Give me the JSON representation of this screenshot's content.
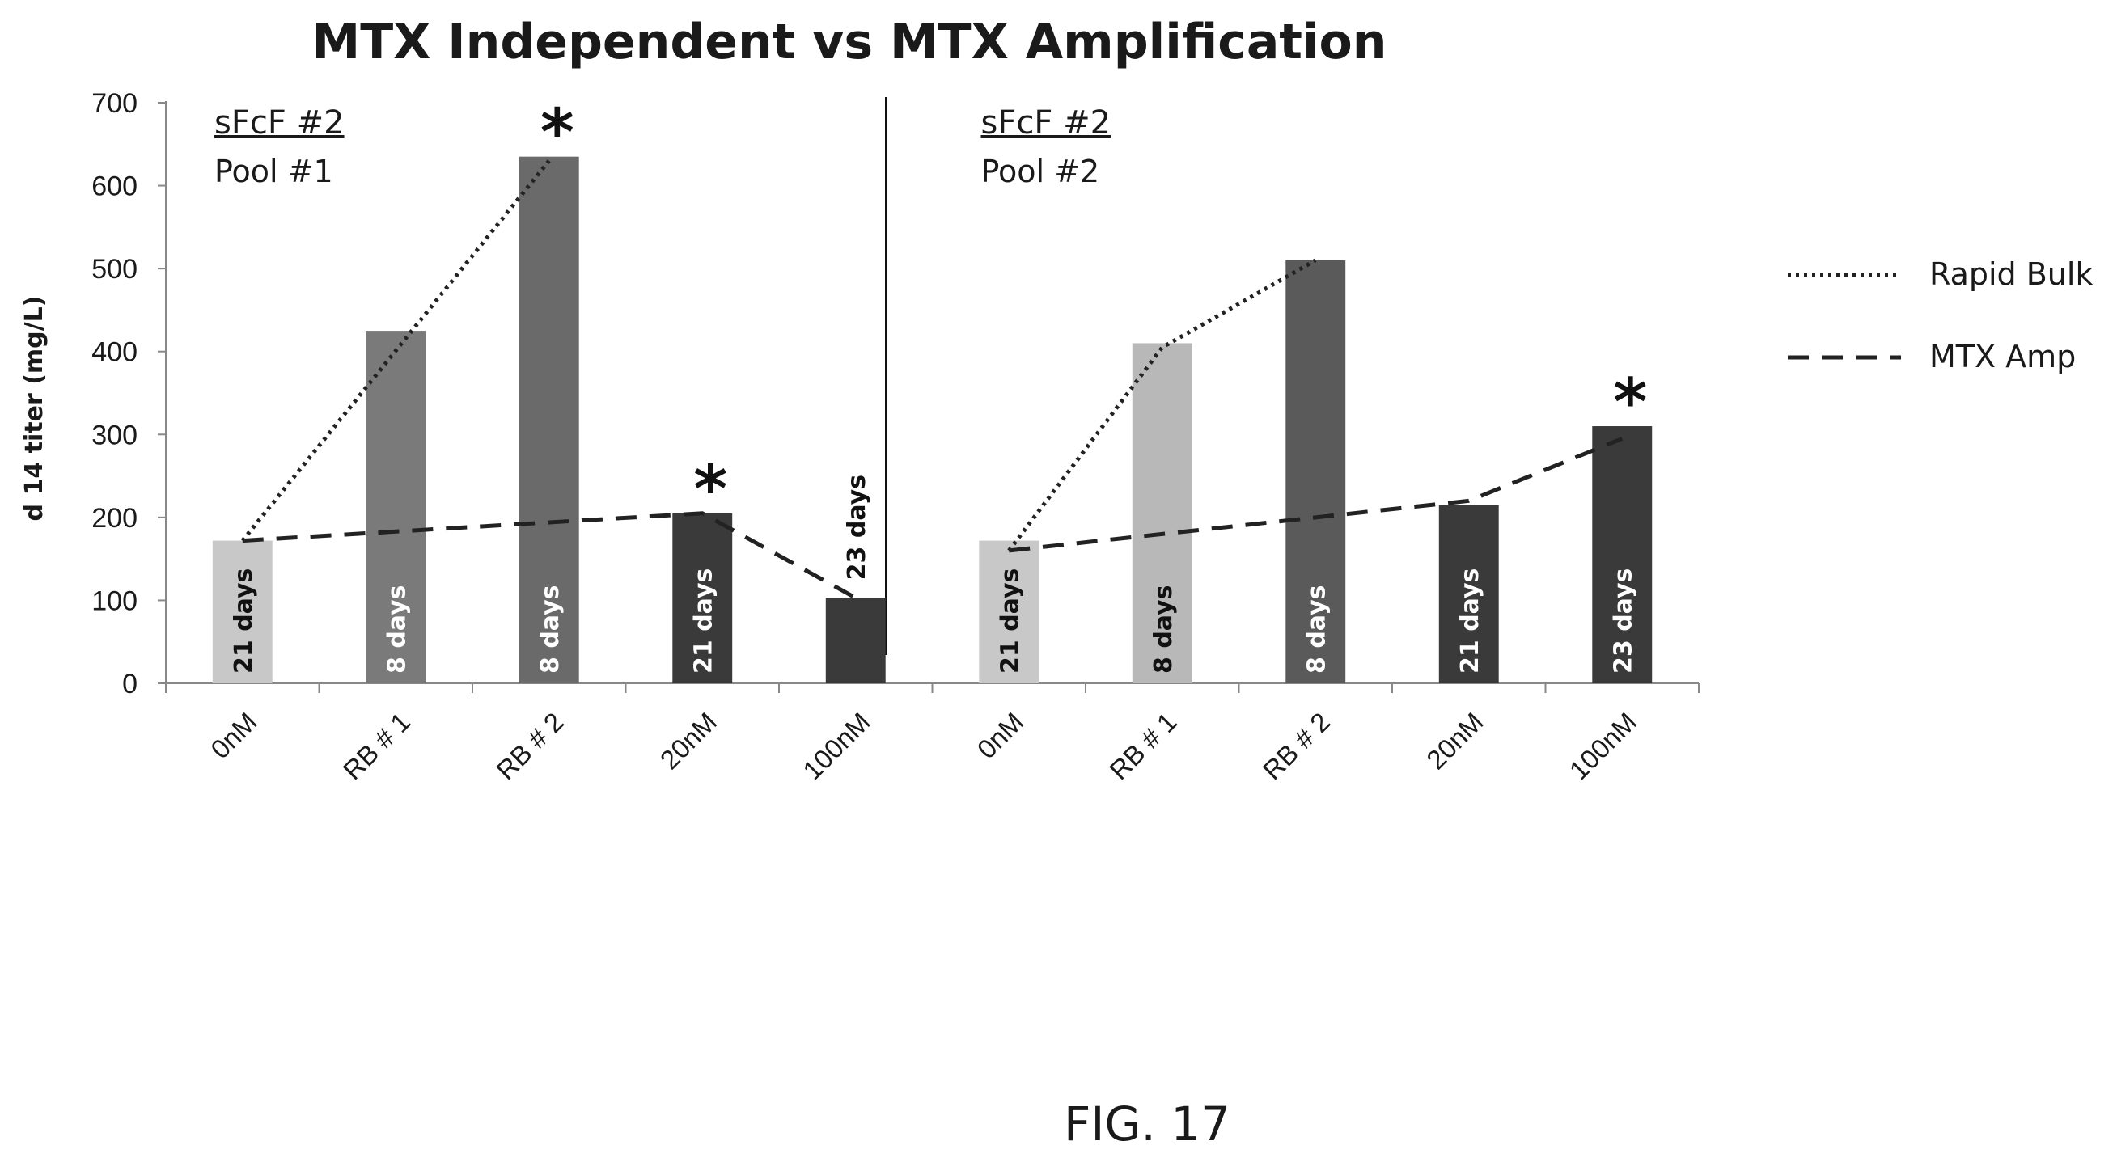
{
  "chart_data": {
    "type": "bar",
    "title": "MTX Independent vs MTX Amplification",
    "ylabel": "d 14 titer (mg/L)",
    "xlabel": "",
    "ylim": [
      0,
      700
    ],
    "yticks": [
      0,
      100,
      200,
      300,
      400,
      500,
      600,
      700
    ],
    "legend_placement": "right",
    "grid": false,
    "colors": {
      "light": "#c8c8c8",
      "medium": "#7a7a7a",
      "dark": "#5a5a5a",
      "darkest": "#3a3a3a"
    },
    "legend": [
      {
        "label": "Rapid Bulk",
        "style": "dotted"
      },
      {
        "label": "MTX Amp",
        "style": "dashed"
      }
    ],
    "panels": [
      {
        "title": "sFcF #2",
        "subtitle": "Pool #1",
        "categories": [
          "0nM",
          "RB # 1",
          "RB # 2",
          "20nM",
          "100nM"
        ],
        "values": [
          172,
          425,
          635,
          205,
          103
        ],
        "bar_labels": [
          "21 days",
          "8 days",
          "8 days",
          "21 days",
          "23 days"
        ],
        "bar_colors": [
          "#c8c8c8",
          "#7a7a7a",
          "#6a6a6a",
          "#3a3a3a",
          "#3a3a3a"
        ],
        "label_outside": [
          false,
          false,
          false,
          false,
          true
        ],
        "stars": [
          false,
          false,
          true,
          true,
          false
        ],
        "rapid_bulk_line": [
          [
            0,
            172
          ],
          [
            2,
            630
          ]
        ],
        "mtx_amp_line": [
          [
            0,
            172
          ],
          [
            3,
            205
          ],
          [
            4,
            103
          ]
        ]
      },
      {
        "title": "sFcF #2",
        "subtitle": "Pool #2",
        "categories": [
          "0nM",
          "RB # 1",
          "RB # 2",
          "20nM",
          "100nM"
        ],
        "values": [
          172,
          410,
          510,
          215,
          310
        ],
        "bar_labels": [
          "21 days",
          "8 days",
          "8 days",
          "21 days",
          "23 days"
        ],
        "bar_colors": [
          "#c8c8c8",
          "#b8b8b8",
          "#5a5a5a",
          "#3a3a3a",
          "#3a3a3a"
        ],
        "label_outside": [
          false,
          false,
          false,
          false,
          false
        ],
        "stars": [
          false,
          false,
          false,
          false,
          true
        ],
        "rapid_bulk_line": [
          [
            0,
            160
          ],
          [
            1,
            405
          ],
          [
            2,
            510
          ]
        ],
        "mtx_amp_line": [
          [
            0,
            160
          ],
          [
            3,
            220
          ],
          [
            4,
            295
          ]
        ]
      }
    ]
  },
  "caption": "FIG. 17"
}
